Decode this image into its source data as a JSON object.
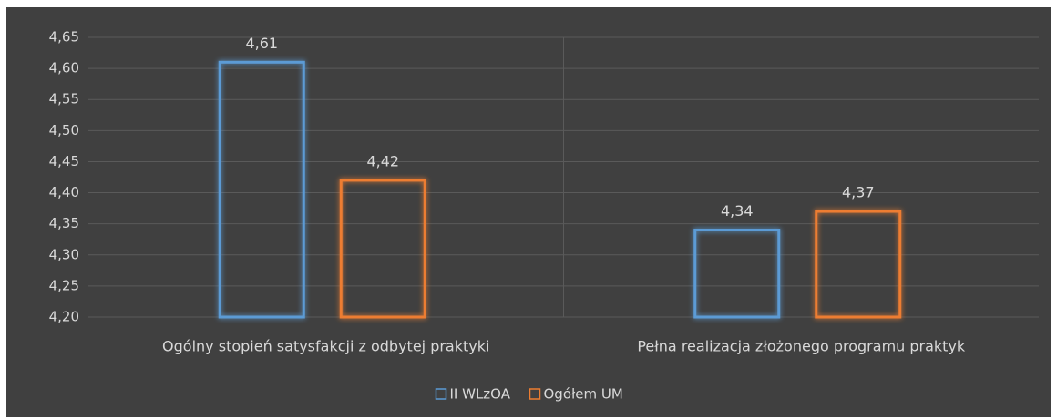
{
  "chart_data": {
    "type": "bar",
    "categories": [
      "Ogólny stopień satysfakcji z odbytej praktyki",
      "Pełna realizacja złożonego programu praktyk"
    ],
    "series": [
      {
        "name": "II WLzOA",
        "color": "#5b9bd5",
        "values": [
          4.61,
          4.34
        ],
        "value_labels": [
          "4,61",
          "4,34"
        ]
      },
      {
        "name": "Ogółem UM",
        "color": "#ed7d31",
        "values": [
          4.42,
          4.37
        ],
        "value_labels": [
          "4,42",
          "4,37"
        ]
      }
    ],
    "ylim": [
      4.2,
      4.65
    ],
    "yticks": [
      {
        "value": 4.2,
        "label": "4,20"
      },
      {
        "value": 4.25,
        "label": "4,25"
      },
      {
        "value": 4.3,
        "label": "4,30"
      },
      {
        "value": 4.35,
        "label": "4,35"
      },
      {
        "value": 4.4,
        "label": "4,40"
      },
      {
        "value": 4.45,
        "label": "4,45"
      },
      {
        "value": 4.5,
        "label": "4,50"
      },
      {
        "value": 4.55,
        "label": "4,55"
      },
      {
        "value": 4.6,
        "label": "4,60"
      },
      {
        "value": 4.65,
        "label": "4,65"
      }
    ],
    "grid": true,
    "legend": "bottom"
  }
}
